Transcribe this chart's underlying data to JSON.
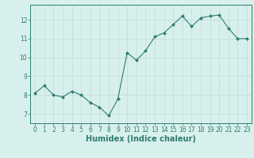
{
  "x": [
    0,
    1,
    2,
    3,
    4,
    5,
    6,
    7,
    8,
    9,
    10,
    11,
    12,
    13,
    14,
    15,
    16,
    17,
    18,
    19,
    20,
    21,
    22,
    23
  ],
  "y": [
    8.1,
    8.5,
    8.0,
    7.9,
    8.2,
    8.0,
    7.6,
    7.35,
    6.9,
    7.8,
    10.25,
    9.85,
    10.35,
    11.1,
    11.3,
    11.75,
    12.2,
    11.65,
    12.1,
    12.2,
    12.25,
    11.55,
    11.0,
    11.0
  ],
  "line_color": "#2d7d6e",
  "marker": "D",
  "marker_size": 2.0,
  "bg_color": "#d8f0ed",
  "grid_color": "#c0dbd7",
  "xlabel": "Humidex (Indice chaleur)",
  "ylim": [
    6.5,
    12.8
  ],
  "xlim": [
    -0.5,
    23.5
  ],
  "yticks": [
    7,
    8,
    9,
    10,
    11,
    12
  ],
  "xticks": [
    0,
    1,
    2,
    3,
    4,
    5,
    6,
    7,
    8,
    9,
    10,
    11,
    12,
    13,
    14,
    15,
    16,
    17,
    18,
    19,
    20,
    21,
    22,
    23
  ],
  "tick_fontsize": 5.5,
  "xlabel_fontsize": 7.0,
  "label_color": "#2d7d6e"
}
